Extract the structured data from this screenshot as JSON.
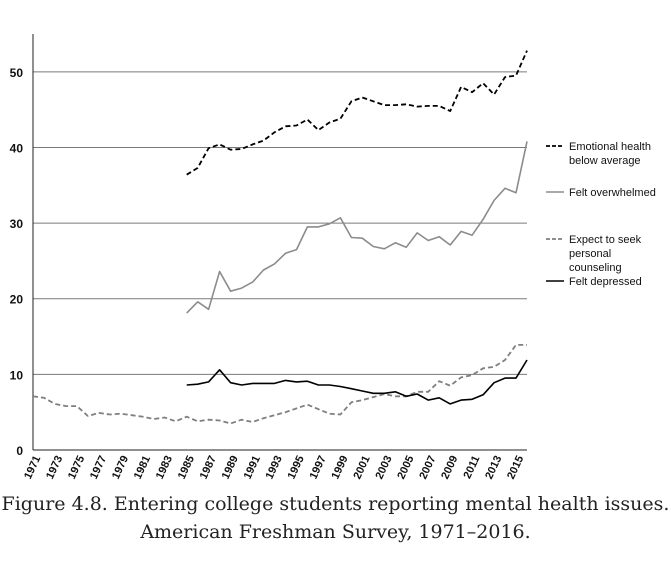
{
  "chart_data": {
    "type": "line",
    "title": "",
    "xlabel": "",
    "ylabel": "",
    "ylim": [
      0,
      55
    ],
    "xlim": [
      1971,
      2016
    ],
    "yticks": [
      0,
      10,
      20,
      30,
      40,
      50
    ],
    "xticks": [
      "1971",
      "1973",
      "1975",
      "1977",
      "1979",
      "1981",
      "1983",
      "1985",
      "1987",
      "1989",
      "1991",
      "1993",
      "1995",
      "1997",
      "1999",
      "2001",
      "2003",
      "2005",
      "2007",
      "2009",
      "2011",
      "2013",
      "2015"
    ],
    "grid": "horizontal",
    "legend_position": "right",
    "series": [
      {
        "name": "Emotional health below average",
        "color": "#000000",
        "style": "dashed",
        "x": [
          1985,
          1986,
          1987,
          1988,
          1989,
          1990,
          1991,
          1992,
          1993,
          1994,
          1995,
          1996,
          1997,
          1998,
          1999,
          2000,
          2001,
          2002,
          2003,
          2004,
          2005,
          2006,
          2007,
          2008,
          2009,
          2010,
          2011,
          2012,
          2013,
          2014,
          2015,
          2016
        ],
        "values": [
          36.4,
          37.3,
          39.9,
          40.4,
          39.7,
          39.8,
          40.4,
          40.9,
          42.0,
          42.8,
          42.9,
          43.7,
          42.3,
          43.3,
          43.8,
          46.1,
          46.6,
          46.1,
          45.6,
          45.6,
          45.7,
          45.4,
          45.5,
          45.5,
          44.8,
          48.0,
          47.3,
          48.5,
          47.0,
          49.3,
          49.5,
          52.8
        ]
      },
      {
        "name": "Felt overwhelmed",
        "color": "#8c8c8c",
        "style": "solid",
        "x": [
          1985,
          1986,
          1987,
          1988,
          1989,
          1990,
          1991,
          1992,
          1993,
          1994,
          1995,
          1996,
          1997,
          1998,
          1999,
          2000,
          2001,
          2002,
          2003,
          2004,
          2005,
          2006,
          2007,
          2008,
          2009,
          2010,
          2011,
          2012,
          2013,
          2014,
          2015,
          2016
        ],
        "values": [
          18.1,
          19.6,
          18.6,
          23.6,
          21.0,
          21.4,
          22.2,
          23.8,
          24.6,
          26.0,
          26.5,
          29.5,
          29.5,
          29.9,
          30.7,
          28.1,
          28.0,
          26.9,
          26.6,
          27.4,
          26.8,
          28.7,
          27.7,
          28.2,
          27.1,
          28.9,
          28.4,
          30.5,
          33.0,
          34.6,
          34.0,
          40.8
        ]
      },
      {
        "name": "Expect to seek personal counseling",
        "color": "#7f7f7f",
        "style": "dashed",
        "x": [
          1971,
          1972,
          1973,
          1974,
          1975,
          1976,
          1977,
          1978,
          1979,
          1980,
          1981,
          1982,
          1983,
          1984,
          1985,
          1986,
          1987,
          1988,
          1989,
          1990,
          1991,
          1992,
          1993,
          1994,
          1995,
          1996,
          1997,
          1998,
          1999,
          2000,
          2001,
          2002,
          2003,
          2004,
          2005,
          2006,
          2007,
          2008,
          2009,
          2010,
          2011,
          2012,
          2013,
          2014,
          2015,
          2016
        ],
        "values": [
          7.1,
          6.9,
          6.1,
          5.8,
          5.8,
          4.5,
          4.9,
          4.7,
          4.8,
          4.6,
          4.4,
          4.1,
          4.3,
          3.8,
          4.4,
          3.8,
          4.0,
          3.9,
          3.5,
          4.0,
          3.7,
          4.2,
          4.6,
          5.0,
          5.5,
          6.0,
          5.4,
          4.8,
          4.7,
          6.3,
          6.6,
          7.0,
          7.4,
          7.1,
          7.1,
          7.7,
          7.7,
          9.1,
          8.5,
          9.6,
          9.9,
          10.8,
          11.0,
          11.9,
          13.9,
          13.9
        ]
      },
      {
        "name": "Felt depressed",
        "color": "#000000",
        "style": "solid",
        "x": [
          1985,
          1986,
          1987,
          1988,
          1989,
          1990,
          1991,
          1992,
          1993,
          1994,
          1995,
          1996,
          1997,
          1998,
          1999,
          2000,
          2001,
          2002,
          2003,
          2004,
          2005,
          2006,
          2007,
          2008,
          2009,
          2010,
          2011,
          2012,
          2013,
          2014,
          2015,
          2016
        ],
        "values": [
          8.6,
          8.7,
          9.0,
          10.6,
          8.9,
          8.6,
          8.8,
          8.8,
          8.8,
          9.2,
          9.0,
          9.1,
          8.6,
          8.6,
          8.4,
          8.1,
          7.8,
          7.5,
          7.5,
          7.7,
          7.1,
          7.4,
          6.6,
          6.9,
          6.1,
          6.6,
          6.7,
          7.3,
          8.9,
          9.5,
          9.5,
          11.9
        ]
      }
    ]
  },
  "caption": {
    "line1": "Figure 4.8. Entering college students reporting mental health issues.",
    "line2": "American Freshman Survey, 1971–2016."
  },
  "legend": [
    {
      "line1": "Emotional health",
      "line2": "below average",
      "line3": ""
    },
    {
      "line1": "Felt overwhelmed",
      "line2": "",
      "line3": ""
    },
    {
      "line1": "Expect to seek",
      "line2": "personal",
      "line3": "counseling"
    },
    {
      "line1": "Felt depressed",
      "line2": "",
      "line3": ""
    }
  ]
}
